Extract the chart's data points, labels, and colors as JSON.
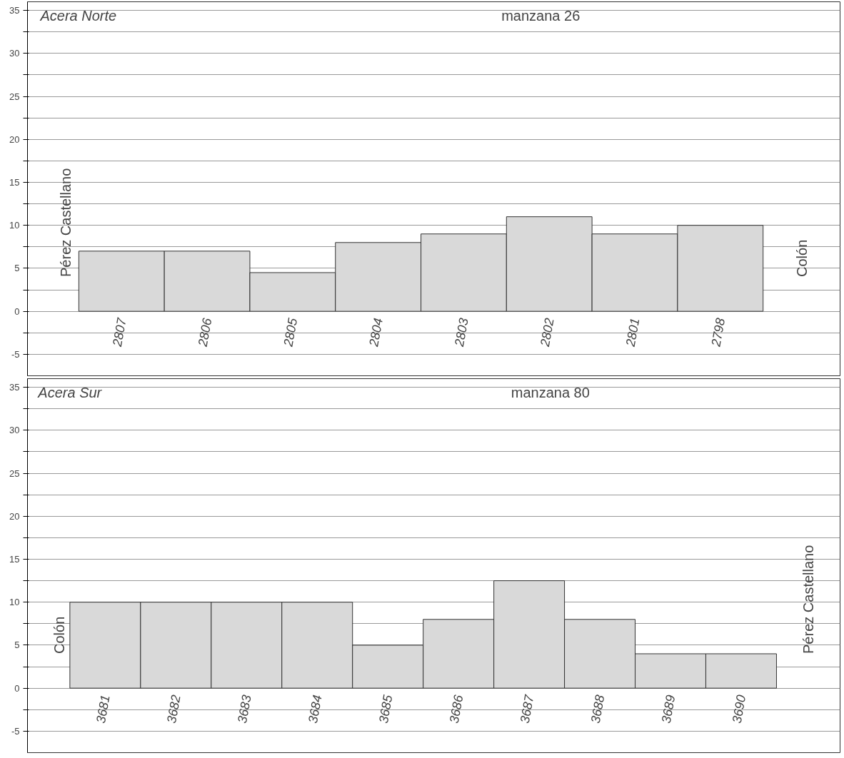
{
  "chart_data": [
    {
      "type": "bar",
      "title": "Acera Norte",
      "subtitle": "manzana 26",
      "categories": [
        "2807",
        "2806",
        "2805",
        "2804",
        "2803",
        "2802",
        "2801",
        "2798"
      ],
      "values": [
        7,
        7,
        4.5,
        8,
        9,
        11,
        9,
        10
      ],
      "color": "#d9d9d9",
      "ylim": [
        -7.5,
        36
      ],
      "yticks": [
        -5,
        {
          "value": -2.5,
          "label": null
        },
        0,
        {
          "value": 2.5,
          "label": null
        },
        5,
        {
          "value": 7.5,
          "label": null
        },
        10,
        {
          "value": 12.5,
          "label": null
        },
        15,
        {
          "value": 17.5,
          "label": null
        },
        20,
        {
          "value": 22.5,
          "label": null
        },
        25,
        {
          "value": 27.5,
          "label": null
        },
        30,
        {
          "value": 32.5,
          "label": null
        },
        35
      ],
      "grid": "y",
      "annotations": [
        "Pérez Castellano",
        "Colón"
      ]
    },
    {
      "type": "bar",
      "title": "Acera Sur",
      "subtitle": "manzana 80",
      "categories": [
        "3681",
        "3682",
        "3683",
        "3684",
        "3685",
        "3686",
        "3687",
        "3688",
        "3689",
        "3690"
      ],
      "values": [
        10,
        10,
        10,
        10,
        5,
        8,
        12.5,
        8,
        4,
        4
      ],
      "color": "#d9d9d9",
      "ylim": [
        -7.5,
        36
      ],
      "yticks": [
        -5,
        {
          "value": -2.5,
          "label": null
        },
        0,
        {
          "value": 2.5,
          "label": null
        },
        5,
        {
          "value": 7.5,
          "label": null
        },
        10,
        {
          "value": 12.5,
          "label": null
        },
        15,
        {
          "value": 17.5,
          "label": null
        },
        20,
        {
          "value": 22.5,
          "label": null
        },
        25,
        {
          "value": 27.5,
          "label": null
        },
        30,
        {
          "value": 32.5,
          "label": null
        },
        35
      ],
      "grid": "y",
      "annotations": [
        "Colón",
        "Pérez Castellano"
      ]
    }
  ]
}
